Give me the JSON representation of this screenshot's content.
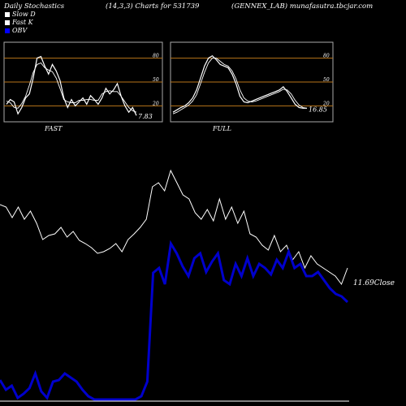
{
  "header": {
    "left": "Daily Stochastics",
    "center": "(14,3,3) Charts for 531739",
    "right": "(GENNEX_LAB) munafasutra.tbcjar.com"
  },
  "legend": [
    {
      "label": "Slow  D",
      "color": "#ffffff"
    },
    {
      "label": "Fast K",
      "color": "#ffffff"
    },
    {
      "label": "OBV",
      "color": "#0000ff"
    }
  ],
  "colors": {
    "background": "#000000",
    "panel_border": "#aaaaaa",
    "level_line": "#b8741a",
    "price": "#ffffff",
    "obv": "#0000cc"
  },
  "chart_data": [
    {
      "type": "line",
      "title": "FAST",
      "ylim": [
        0,
        100
      ],
      "levels": [
        80,
        50,
        20
      ],
      "last_value_label": "7.83",
      "series": [
        {
          "name": "Fast K",
          "values": [
            22,
            28,
            25,
            10,
            18,
            30,
            35,
            55,
            80,
            82,
            70,
            60,
            72,
            64,
            52,
            30,
            18,
            28,
            20,
            25,
            30,
            22,
            33,
            28,
            22,
            30,
            42,
            35,
            40,
            48,
            32,
            20,
            12,
            18,
            8
          ]
        },
        {
          "name": "Slow  D",
          "values": [
            26,
            24,
            18,
            17,
            23,
            32,
            46,
            62,
            72,
            74,
            68,
            65,
            63,
            55,
            42,
            28,
            25,
            24,
            24,
            27,
            27,
            28,
            28,
            27,
            27,
            35,
            38,
            39,
            38,
            38,
            32,
            25,
            18,
            14,
            12
          ]
        }
      ]
    },
    {
      "type": "line",
      "title": "FULL",
      "ylim": [
        0,
        100
      ],
      "levels": [
        80,
        50,
        20
      ],
      "last_value_label": "16.85",
      "series": [
        {
          "name": "Fast K",
          "values": [
            12,
            15,
            18,
            20,
            24,
            30,
            40,
            55,
            70,
            80,
            83,
            78,
            72,
            70,
            68,
            60,
            48,
            32,
            25,
            24,
            26,
            28,
            30,
            32,
            34,
            36,
            38,
            40,
            44,
            38,
            30,
            22,
            18,
            17,
            17
          ]
        },
        {
          "name": "Slow  D",
          "values": [
            10,
            12,
            15,
            18,
            21,
            26,
            34,
            48,
            62,
            74,
            80,
            80,
            76,
            72,
            70,
            64,
            54,
            40,
            30,
            26,
            25,
            26,
            28,
            30,
            32,
            34,
            36,
            38,
            41,
            40,
            35,
            27,
            21,
            18,
            17
          ]
        }
      ]
    },
    {
      "type": "line",
      "title": "",
      "last_value_label": "11.69",
      "last_value_suffix": "Close",
      "series": [
        {
          "name": "Close",
          "values": [
            252,
            255,
            268,
            255,
            270,
            260,
            275,
            295,
            290,
            288,
            280,
            292,
            285,
            296,
            300,
            305,
            312,
            310,
            306,
            300,
            310,
            295,
            288,
            280,
            270,
            230,
            225,
            235,
            210,
            225,
            240,
            245,
            262,
            270,
            258,
            272,
            245,
            270,
            255,
            275,
            260,
            288,
            292,
            302,
            308,
            290,
            310,
            302,
            320,
            310,
            330,
            315,
            325,
            330,
            335,
            340,
            350,
            330
          ]
        },
        {
          "name": "OBV",
          "values": [
            468,
            480,
            475,
            490,
            485,
            478,
            460,
            482,
            490,
            470,
            468,
            460,
            465,
            470,
            480,
            488,
            492,
            492,
            492,
            492,
            492,
            492,
            492,
            492,
            488,
            470,
            336,
            330,
            350,
            300,
            312,
            328,
            340,
            318,
            312,
            335,
            322,
            312,
            345,
            350,
            325,
            340,
            318,
            340,
            325,
            330,
            338,
            320,
            330,
            310,
            330,
            325,
            340,
            340,
            335,
            345,
            355,
            362,
            365,
            372
          ]
        }
      ]
    }
  ]
}
